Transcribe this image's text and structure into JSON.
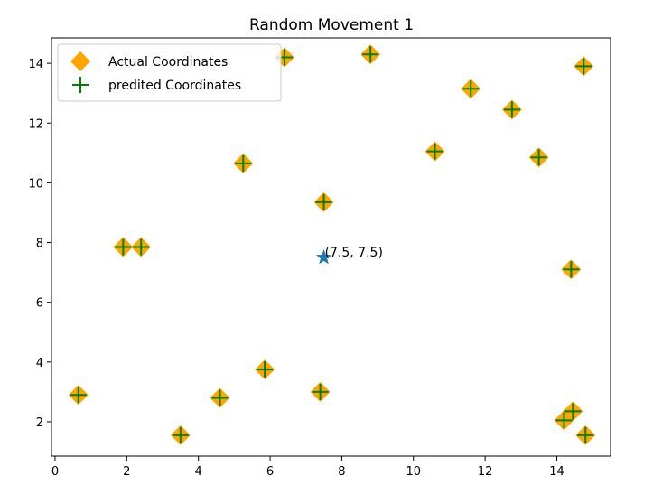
{
  "chart_data": {
    "type": "scatter",
    "title": "Random Movement 1",
    "xlabel": "",
    "ylabel": "",
    "xlim": [
      -0.1,
      15.5
    ],
    "ylim": [
      0.85,
      14.85
    ],
    "xticks": [
      0,
      2,
      4,
      6,
      8,
      10,
      12,
      14
    ],
    "yticks": [
      2,
      4,
      6,
      8,
      10,
      12,
      14
    ],
    "grid": false,
    "legend_position": "top-left",
    "series": [
      {
        "name": "Actual Coordinates",
        "marker": "diamond",
        "color": "#ffa500",
        "points": [
          [
            0.65,
            2.9
          ],
          [
            1.9,
            7.85
          ],
          [
            2.4,
            7.85
          ],
          [
            3.5,
            1.55
          ],
          [
            4.6,
            2.8
          ],
          [
            5.25,
            10.65
          ],
          [
            5.85,
            3.75
          ],
          [
            6.4,
            14.2
          ],
          [
            7.4,
            3.0
          ],
          [
            7.5,
            9.35
          ],
          [
            8.8,
            14.3
          ],
          [
            10.6,
            11.05
          ],
          [
            11.6,
            13.15
          ],
          [
            12.75,
            12.45
          ],
          [
            13.5,
            10.85
          ],
          [
            14.2,
            2.05
          ],
          [
            14.4,
            7.1
          ],
          [
            14.45,
            2.35
          ],
          [
            14.75,
            13.9
          ],
          [
            14.8,
            1.55
          ]
        ]
      },
      {
        "name": "predited Coordinates",
        "marker": "plus",
        "color": "#008000",
        "points": [
          [
            0.65,
            2.9
          ],
          [
            1.9,
            7.85
          ],
          [
            2.4,
            7.85
          ],
          [
            3.5,
            1.55
          ],
          [
            4.6,
            2.8
          ],
          [
            5.25,
            10.65
          ],
          [
            5.85,
            3.75
          ],
          [
            6.4,
            14.2
          ],
          [
            7.4,
            3.0
          ],
          [
            7.5,
            9.35
          ],
          [
            8.8,
            14.3
          ],
          [
            10.6,
            11.05
          ],
          [
            11.6,
            13.15
          ],
          [
            12.75,
            12.45
          ],
          [
            13.5,
            10.85
          ],
          [
            14.2,
            2.05
          ],
          [
            14.4,
            7.1
          ],
          [
            14.45,
            2.35
          ],
          [
            14.75,
            13.9
          ],
          [
            14.8,
            1.55
          ]
        ]
      }
    ],
    "start_point": {
      "x": 7.5,
      "y": 7.5,
      "marker": "star",
      "color": "#1f77b4",
      "label": "(7.5, 7.5)"
    }
  }
}
